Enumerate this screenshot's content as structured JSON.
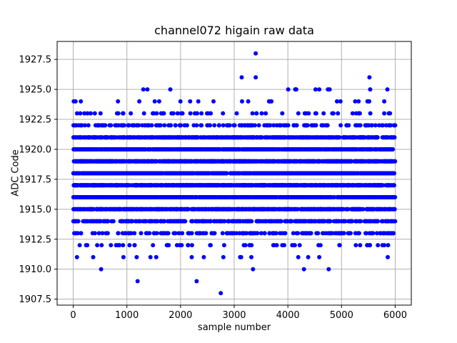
{
  "chart_data": {
    "type": "scatter",
    "title": "channel072 higain raw data",
    "xlabel": "sample number",
    "ylabel": "ADC Code",
    "xlim": [
      -300,
      6300
    ],
    "ylim": [
      1907,
      1929
    ],
    "xticks": [
      0,
      1000,
      2000,
      3000,
      4000,
      5000,
      6000
    ],
    "yticks": [
      1907.5,
      1910.0,
      1912.5,
      1915.0,
      1917.5,
      1920.0,
      1922.5,
      1925.0,
      1927.5
    ],
    "x_data_range": [
      0,
      6000
    ],
    "n_samples_approx": 6000,
    "marker_color": "#0000ff",
    "marker_radius": 3,
    "grid": true,
    "grid_color": "#b0b0b0",
    "frame_color": "#000000",
    "background_color": "#ffffff",
    "seed": 7,
    "bands": [
      {
        "adc": 1911,
        "count": 16
      },
      {
        "adc": 1912,
        "count": 55
      },
      {
        "adc": 1913,
        "count": 170
      },
      {
        "adc": 1914,
        "count": 330
      },
      {
        "adc": 1915,
        "count": 620
      },
      {
        "adc": 1916,
        "count": 820
      },
      {
        "adc": 1917,
        "count": 920
      },
      {
        "adc": 1918,
        "count": 920
      },
      {
        "adc": 1919,
        "count": 820
      },
      {
        "adc": 1920,
        "count": 700
      },
      {
        "adc": 1921,
        "count": 560
      },
      {
        "adc": 1922,
        "count": 170
      },
      {
        "adc": 1923,
        "count": 60
      },
      {
        "adc": 1924,
        "count": 24
      },
      {
        "adc": 1925,
        "count": 13
      }
    ],
    "outliers": [
      {
        "x": 2750,
        "y": 1908
      },
      {
        "x": 1200,
        "y": 1909
      },
      {
        "x": 2300,
        "y": 1909
      },
      {
        "x": 520,
        "y": 1910
      },
      {
        "x": 3350,
        "y": 1910
      },
      {
        "x": 4300,
        "y": 1910
      },
      {
        "x": 4760,
        "y": 1910
      },
      {
        "x": 3140,
        "y": 1926
      },
      {
        "x": 3400,
        "y": 1926
      },
      {
        "x": 5520,
        "y": 1926
      },
      {
        "x": 3400,
        "y": 1928
      }
    ]
  }
}
